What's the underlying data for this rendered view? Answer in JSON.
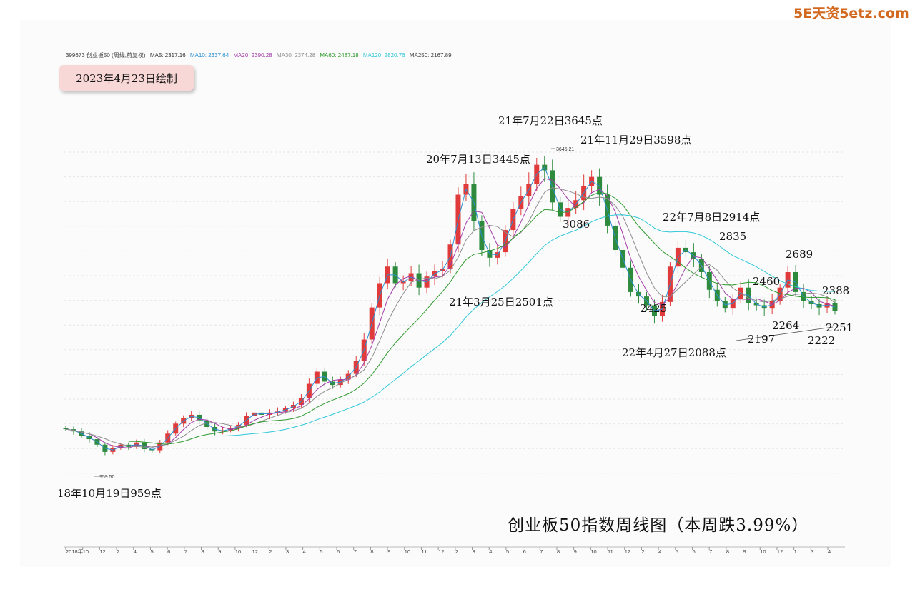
{
  "watermark": "5E天资5etz.com",
  "legend": {
    "symbol": "399673 创业板50 (周线,前复权)",
    "items": [
      {
        "label": "MA5: 2317.16",
        "color": "#333333"
      },
      {
        "label": "MA10: 2337.64",
        "color": "#2a8fd0"
      },
      {
        "label": "MA20: 2390.28",
        "color": "#a23ca8"
      },
      {
        "label": "MA30: 2374.28",
        "color": "#8c8c8c"
      },
      {
        "label": "MA60: 2487.18",
        "color": "#2e9a2e"
      },
      {
        "label": "MA120: 2820.76",
        "color": "#2fc7d8"
      },
      {
        "label": "MA250: 2167.89",
        "color": "#444444"
      }
    ]
  },
  "date_box": "2023年4月23日绘制",
  "title": "创业板50指数周线图（本周跌3.99%）",
  "annotations": {
    "low_2018": "18年10月19日959点",
    "peak_2020": "20年7月13日3445点",
    "peak_2021_jul": "21年7月22日3645点",
    "peak_2021_nov": "21年11月29日3598点",
    "low_2021_mar": "21年3月25日2501点",
    "v3086": "3086",
    "v2914": "22年7月8日2914点",
    "v2835": "2835",
    "v2425": "2425",
    "low_2022_apr": "22年4月27日2088点",
    "v2689": "2689",
    "v2460": "2460",
    "v2388": "2388",
    "v2264": "2264",
    "v2251": "2251",
    "v2197": "2197",
    "v2222": "2222",
    "tag_3645": "3645.21",
    "tag_959": "959.50"
  },
  "chart_data": {
    "type": "candlestick",
    "title": "创业板50指数周线图（本周跌3.99%）",
    "x_axis_ticks": [
      "2018年",
      "10",
      "12",
      "2",
      "4",
      "5",
      "6",
      "7",
      "8",
      "9",
      "10",
      "12",
      "2",
      "3",
      "4",
      "5",
      "6",
      "7",
      "8",
      "9",
      "10",
      "11",
      "12",
      "2",
      "3",
      "4",
      "5",
      "6",
      "7",
      "8",
      "9",
      "10",
      "11",
      "12",
      "2",
      "4",
      "5",
      "6",
      "7",
      "8",
      "9",
      "10",
      "12",
      "1",
      "3",
      "4"
    ],
    "ylim": [
      800,
      3800
    ],
    "grid": true,
    "key_points": [
      {
        "date": "2018-10-19",
        "value": 959.5,
        "kind": "low"
      },
      {
        "date": "2020-07-13",
        "value": 3445,
        "kind": "high"
      },
      {
        "date": "2021-03-25",
        "value": 2501,
        "kind": "low"
      },
      {
        "date": "2021-07-22",
        "value": 3645.21,
        "kind": "high"
      },
      {
        "date": "2021-11-29",
        "value": 3598,
        "kind": "high"
      },
      {
        "date": "2022-04-27",
        "value": 2088,
        "kind": "low"
      },
      {
        "date": "2022-07-08",
        "value": 2914,
        "kind": "high"
      }
    ],
    "closes": [
      1180,
      1160,
      1120,
      1090,
      1040,
      975,
      1010,
      1040,
      1020,
      1060,
      1000,
      990,
      1060,
      1140,
      1230,
      1280,
      1310,
      1260,
      1200,
      1160,
      1170,
      1190,
      1220,
      1300,
      1330,
      1310,
      1330,
      1340,
      1370,
      1400,
      1460,
      1590,
      1700,
      1610,
      1580,
      1630,
      1680,
      1800,
      1990,
      2280,
      2500,
      2650,
      2500,
      2520,
      2590,
      2460,
      2560,
      2610,
      2630,
      2850,
      3300,
      3400,
      3060,
      2800,
      2730,
      2780,
      2980,
      3170,
      3290,
      3400,
      3570,
      3520,
      3230,
      3100,
      3180,
      3250,
      3380,
      3460,
      3300,
      3020,
      2800,
      2640,
      2420,
      2380,
      2300,
      2200,
      2330,
      2650,
      2820,
      2780,
      2720,
      2600,
      2440,
      2340,
      2270,
      2360,
      2460,
      2320,
      2300,
      2270,
      2340,
      2460,
      2600,
      2420,
      2340,
      2310,
      2280,
      2320,
      2251
    ]
  }
}
